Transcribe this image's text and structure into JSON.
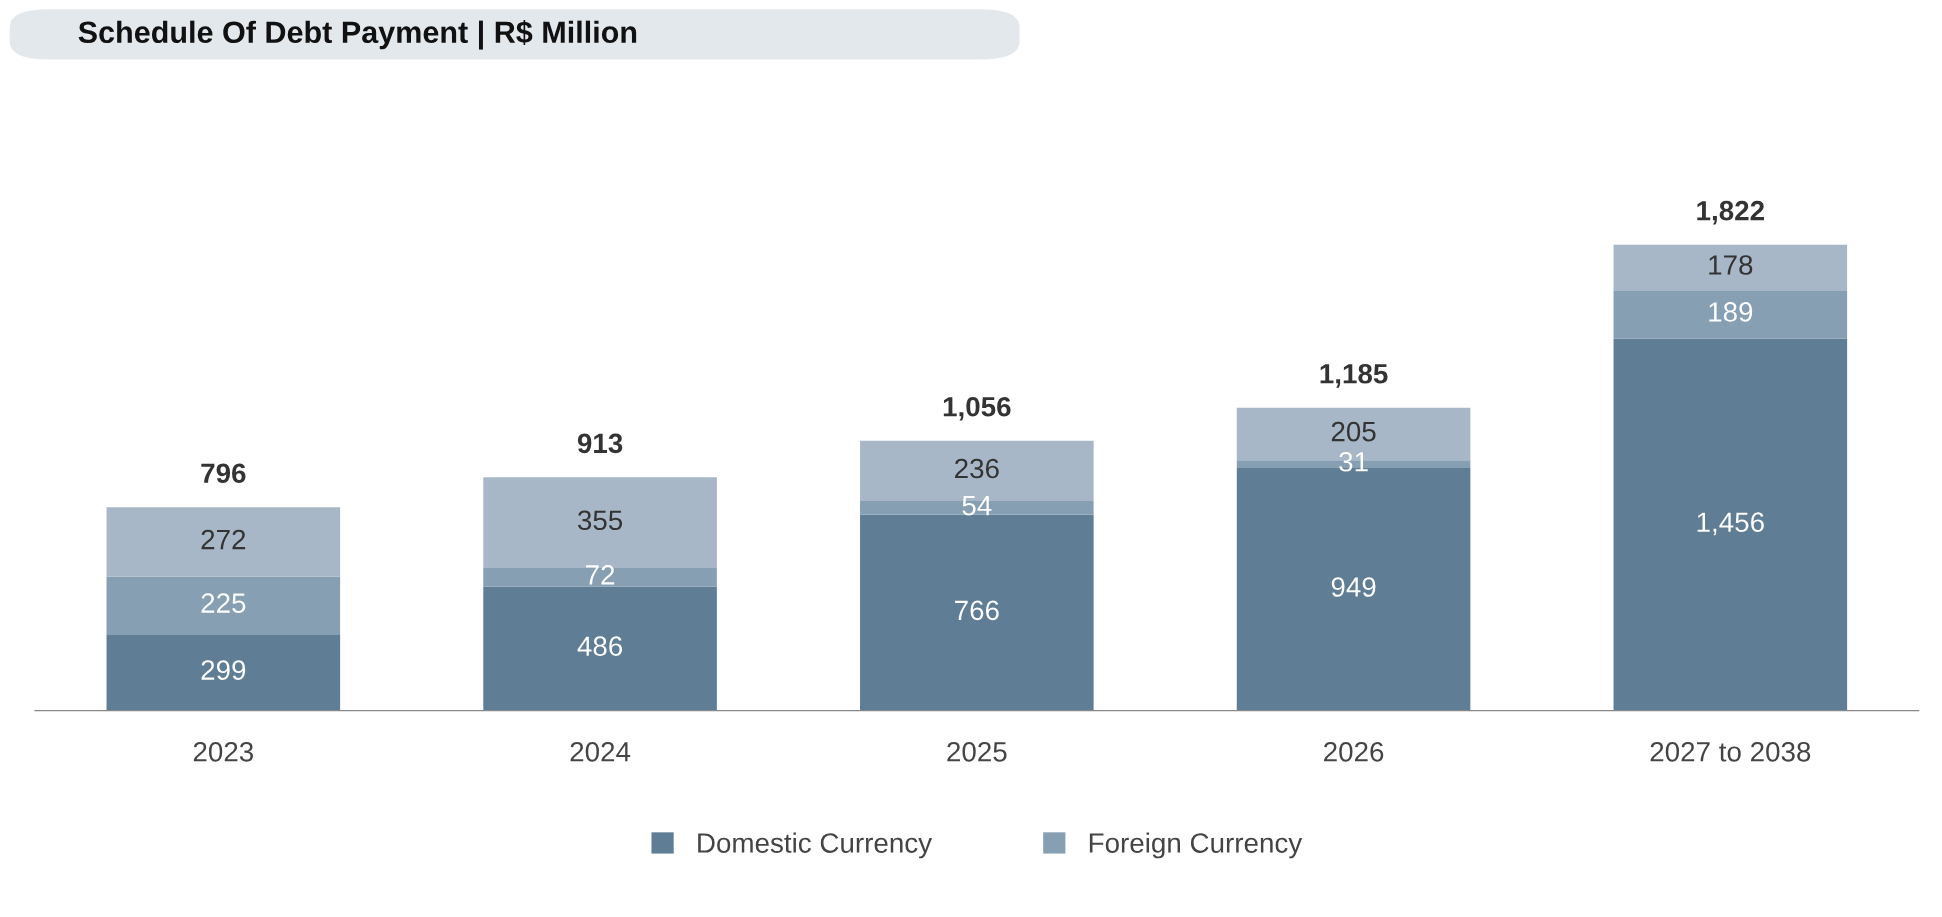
{
  "chart_data": {
    "type": "bar",
    "title": "Schedule Of Debt Payment | R$ Million",
    "categories": [
      "2023",
      "2024",
      "2025",
      "2026",
      "2027 to 2038"
    ],
    "stacked": true,
    "legend": "bottom",
    "grid": false,
    "series": [
      {
        "name": "Domestic Currency",
        "color": "#5f7d95",
        "values": [
          299,
          486,
          766,
          949,
          1456
        ],
        "value_labels": [
          "299",
          "486",
          "766",
          "949",
          "1,456"
        ]
      },
      {
        "name": "Foreign Currency",
        "color": "#869fb3",
        "values": [
          225,
          72,
          54,
          31,
          189
        ],
        "value_labels": [
          "225",
          "72",
          "54",
          "31",
          "189"
        ]
      },
      {
        "color": "#a7b7c7",
        "values": [
          272,
          355,
          236,
          205,
          178
        ],
        "value_labels": [
          "272",
          "355",
          "236",
          "205",
          "178"
        ]
      }
    ],
    "totals": [
      "796",
      "913",
      "1,056",
      "1,185",
      "1,822"
    ]
  }
}
